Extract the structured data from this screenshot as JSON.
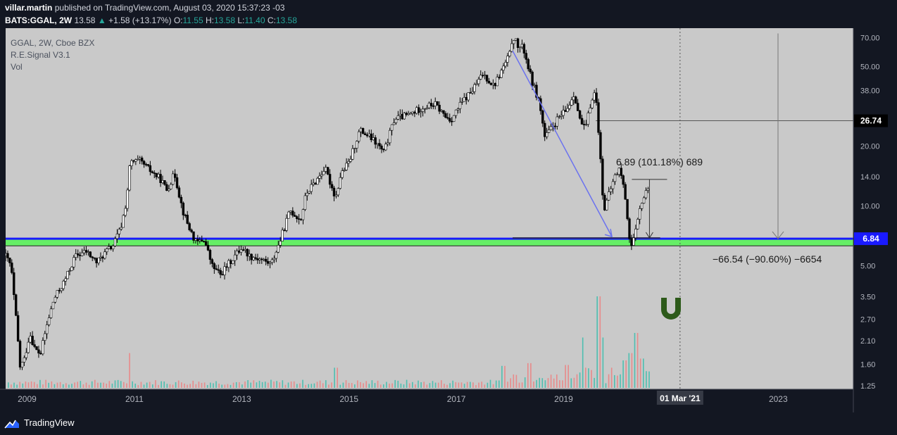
{
  "header": {
    "publisher_user": "villar.martin",
    "published_text": "published on TradingView.com, August 03, 2020 15:37:23 -03",
    "symbol": "BATS:GGAL, 2W",
    "last": "13.58",
    "change_arrow": "▲",
    "change": "+1.58 (+13.17%)",
    "open_label": "O:",
    "open": "11.55",
    "high_label": "H:",
    "high": "13.58",
    "low_label": "L:",
    "low": "11.40",
    "close_label": "C:",
    "close": "13.58"
  },
  "legend": {
    "main_series": "GGAL, 2W, Cboe BZX",
    "indicator_1": "R.E.Signal V3.1",
    "indicator_2": "Vol"
  },
  "annotations": {
    "upper_measure": "6.89 (101.18%) 689",
    "lower_measure": "−66.54 (−90.60%) −6654"
  },
  "price_labels": {
    "top_level": "26.74",
    "support_level": "6.84"
  },
  "footer": {
    "brand": "TradingView"
  },
  "colors": {
    "background_plot": "#c9c9c9",
    "background_app": "#131722",
    "support_line": "#1a1aff",
    "support_band": "#66ee66",
    "trend_line": "#6b72ef",
    "candle": "#000000",
    "volume_up": "#4dbfb0",
    "volume_down": "#e88a8a",
    "magnet_icon": "#2d5a1a"
  },
  "chart_data": {
    "type": "candlestick",
    "title": "GGAL, 2W, Cboe BZX",
    "y_scale": "log",
    "y_ticks": [
      70,
      50,
      38,
      28,
      20,
      14,
      10,
      7,
      5,
      3.5,
      2.7,
      2.1,
      1.6,
      1.25
    ],
    "y_tick_labels": [
      "70.00",
      "50.00",
      "38.00",
      "",
      "20.00",
      "14.00",
      "10.00",
      "",
      "5.00",
      "3.50",
      "2.70",
      "2.10",
      "1.60",
      "1.25"
    ],
    "ylim": [
      1.2,
      78
    ],
    "x_ticks": [
      2009,
      2011,
      2013,
      2015,
      2017,
      2019,
      2021,
      2023
    ],
    "x_tick_labels": [
      "2009",
      "2011",
      "2013",
      "2015",
      "2017",
      "2019",
      "",
      "2023"
    ],
    "xlim": [
      2008.6,
      2024.4
    ],
    "cursor_label": "01 Mar '21",
    "cursor_x": 2021.17,
    "horizontal_levels": [
      {
        "price": 26.74,
        "label": "26.74"
      },
      {
        "price": 6.84,
        "label": "6.84"
      }
    ],
    "support_band": [
      6.3,
      6.84
    ],
    "trend_line": {
      "from": [
        2018.05,
        60
      ],
      "to": [
        2019.9,
        7.0
      ]
    },
    "upper_measure": {
      "x": 2020.6,
      "from": 6.9,
      "to": 13.58,
      "text": "6.89 (101.18%) 689"
    },
    "lower_measure": {
      "x": 2020.9,
      "from": 73.4,
      "to": 6.84,
      "text": "−66.54 (−90.60%) −6654"
    },
    "price_path": [
      [
        2008.6,
        5.6
      ],
      [
        2008.7,
        5.0
      ],
      [
        2008.8,
        2.6
      ],
      [
        2008.87,
        1.55
      ],
      [
        2008.95,
        1.7
      ],
      [
        2009.05,
        2.3
      ],
      [
        2009.15,
        1.9
      ],
      [
        2009.25,
        1.8
      ],
      [
        2009.35,
        2.4
      ],
      [
        2009.5,
        3.4
      ],
      [
        2009.7,
        4.2
      ],
      [
        2009.9,
        5.6
      ],
      [
        2010.1,
        5.9
      ],
      [
        2010.3,
        5.2
      ],
      [
        2010.5,
        6.0
      ],
      [
        2010.6,
        6.3
      ],
      [
        2010.75,
        7.8
      ],
      [
        2010.85,
        10.5
      ],
      [
        2010.92,
        16.5
      ],
      [
        2011.1,
        16.8
      ],
      [
        2011.3,
        15.0
      ],
      [
        2011.5,
        13.5
      ],
      [
        2011.6,
        12.0
      ],
      [
        2011.75,
        14.5
      ],
      [
        2011.9,
        9.5
      ],
      [
        2012.0,
        8.0
      ],
      [
        2012.15,
        6.5
      ],
      [
        2012.3,
        6.8
      ],
      [
        2012.45,
        5.0
      ],
      [
        2012.6,
        4.5
      ],
      [
        2012.8,
        5.3
      ],
      [
        2013.0,
        6.2
      ],
      [
        2013.15,
        5.6
      ],
      [
        2013.35,
        5.4
      ],
      [
        2013.55,
        5.1
      ],
      [
        2013.7,
        6.5
      ],
      [
        2013.9,
        9.5
      ],
      [
        2014.1,
        8.5
      ],
      [
        2014.2,
        11.5
      ],
      [
        2014.4,
        13.5
      ],
      [
        2014.55,
        15.5
      ],
      [
        2014.75,
        11.0
      ],
      [
        2014.85,
        14.5
      ],
      [
        2015.0,
        16.5
      ],
      [
        2015.2,
        24.0
      ],
      [
        2015.4,
        22.0
      ],
      [
        2015.55,
        20.0
      ],
      [
        2015.65,
        18.5
      ],
      [
        2015.85,
        27.5
      ],
      [
        2016.1,
        28.5
      ],
      [
        2016.35,
        31.0
      ],
      [
        2016.6,
        32.5
      ],
      [
        2016.8,
        28.0
      ],
      [
        2016.9,
        27.0
      ],
      [
        2017.1,
        33.0
      ],
      [
        2017.3,
        38.0
      ],
      [
        2017.5,
        46.0
      ],
      [
        2017.7,
        40.0
      ],
      [
        2017.85,
        48.0
      ],
      [
        2018.0,
        58.0
      ],
      [
        2018.05,
        72.0
      ],
      [
        2018.15,
        63.0
      ],
      [
        2018.25,
        62.0
      ],
      [
        2018.4,
        43.0
      ],
      [
        2018.55,
        33.0
      ],
      [
        2018.65,
        22.0
      ],
      [
        2018.75,
        24.0
      ],
      [
        2018.9,
        27.5
      ],
      [
        2019.05,
        30.0
      ],
      [
        2019.2,
        37.0
      ],
      [
        2019.3,
        27.0
      ],
      [
        2019.4,
        24.0
      ],
      [
        2019.55,
        37.0
      ],
      [
        2019.6,
        36.0
      ],
      [
        2019.65,
        24.0
      ],
      [
        2019.7,
        15.0
      ],
      [
        2019.75,
        9.5
      ],
      [
        2019.85,
        11.5
      ],
      [
        2019.95,
        14.0
      ],
      [
        2020.05,
        15.5
      ],
      [
        2020.15,
        11.0
      ],
      [
        2020.25,
        6.1
      ],
      [
        2020.35,
        7.5
      ],
      [
        2020.45,
        10.5
      ],
      [
        2020.55,
        11.8
      ],
      [
        2020.6,
        13.58
      ]
    ],
    "volume_scale_max": 1.0,
    "volume_spikes": [
      [
        2010.9,
        0.38
      ],
      [
        2014.75,
        0.22
      ],
      [
        2017.85,
        0.24
      ],
      [
        2018.35,
        0.27
      ],
      [
        2019.05,
        0.25
      ],
      [
        2019.35,
        0.55
      ],
      [
        2019.62,
        1.0
      ],
      [
        2019.7,
        0.55
      ],
      [
        2020.12,
        0.3
      ],
      [
        2020.25,
        0.38
      ],
      [
        2020.35,
        0.6
      ],
      [
        2020.45,
        0.32
      ]
    ]
  }
}
